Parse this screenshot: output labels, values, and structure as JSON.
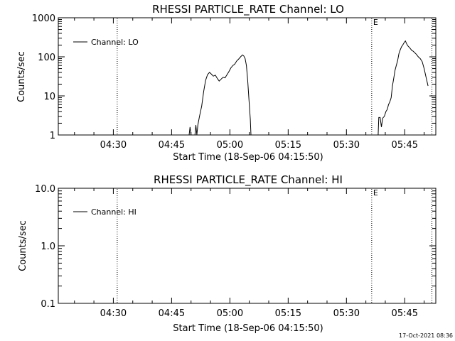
{
  "footer": {
    "timestamp": "17-Oct-2021 08:36"
  },
  "chart_data": [
    {
      "type": "line",
      "title": "RHESSI PARTICLE_RATE Channel: LO",
      "xlabel": "Start Time (18-Sep-06 04:15:50)",
      "ylabel": "Counts/sec",
      "yscale": "log",
      "xlim": [
        "04:15:50",
        "05:53:00"
      ],
      "ylim": [
        1,
        1000
      ],
      "xticks": [
        "04:30",
        "04:45",
        "05:00",
        "05:15",
        "05:30",
        "05:45"
      ],
      "yticks": [
        "1",
        "10",
        "100",
        "1000"
      ],
      "legend": {
        "label": "Channel: LO",
        "position": "top-left"
      },
      "markers": [
        {
          "time": "04:31:00",
          "label": ""
        },
        {
          "time": "05:36:30",
          "label": "E"
        },
        {
          "time": "05:52:00",
          "label": ""
        }
      ],
      "series": [
        {
          "name": "Channel: LO",
          "segments": [
            [
              [
                "04:49:30",
                1.0
              ],
              [
                "04:49:45",
                1.6
              ],
              [
                "04:50:00",
                1.0
              ],
              [
                "04:51:00",
                1.0
              ],
              [
                "04:51:15",
                1.8
              ],
              [
                "04:51:30",
                1.0
              ],
              [
                "04:51:45",
                1.8
              ],
              [
                "04:52:10",
                3.0
              ],
              [
                "04:52:45",
                5.5
              ],
              [
                "04:53:15",
                13.0
              ],
              [
                "04:53:45",
                25.0
              ],
              [
                "04:54:15",
                35.0
              ],
              [
                "04:54:45",
                40.0
              ],
              [
                "04:55:15",
                36.0
              ],
              [
                "04:55:45",
                32.0
              ],
              [
                "04:56:15",
                34.0
              ],
              [
                "04:56:45",
                28.0
              ],
              [
                "04:57:15",
                24.0
              ],
              [
                "04:57:45",
                27.0
              ],
              [
                "04:58:15",
                30.0
              ],
              [
                "04:58:45",
                29.0
              ],
              [
                "04:59:15",
                35.0
              ],
              [
                "04:59:45",
                42.0
              ],
              [
                "05:00:15",
                52.0
              ],
              [
                "05:00:45",
                60.0
              ],
              [
                "05:01:15",
                65.0
              ],
              [
                "05:01:45",
                78.0
              ],
              [
                "05:02:15",
                88.0
              ],
              [
                "05:02:45",
                100.0
              ],
              [
                "05:03:15",
                112.0
              ],
              [
                "05:03:35",
                105.0
              ],
              [
                "05:03:55",
                90.0
              ],
              [
                "05:04:15",
                60.0
              ],
              [
                "05:04:35",
                25.0
              ],
              [
                "05:04:55",
                8.0
              ],
              [
                "05:05:15",
                2.5
              ],
              [
                "05:05:25",
                1.0
              ]
            ],
            [
              [
                "05:38:10",
                1.0
              ],
              [
                "05:38:20",
                2.8
              ],
              [
                "05:38:40",
                2.8
              ],
              [
                "05:39:00",
                1.6
              ],
              [
                "05:39:20",
                2.7
              ],
              [
                "05:39:45",
                3.0
              ],
              [
                "05:40:10",
                4.0
              ],
              [
                "05:40:30",
                4.5
              ],
              [
                "05:40:50",
                6.0
              ],
              [
                "05:41:10",
                7.0
              ],
              [
                "05:41:30",
                9.0
              ],
              [
                "05:41:50",
                18.0
              ],
              [
                "05:42:10",
                28.0
              ],
              [
                "05:42:30",
                45.0
              ],
              [
                "05:42:50",
                60.0
              ],
              [
                "05:43:10",
                80.0
              ],
              [
                "05:43:30",
                120.0
              ],
              [
                "05:43:50",
                150.0
              ],
              [
                "05:44:10",
                180.0
              ],
              [
                "05:44:30",
                200.0
              ],
              [
                "05:44:50",
                230.0
              ],
              [
                "05:45:10",
                255.0
              ],
              [
                "05:45:30",
                215.0
              ],
              [
                "05:45:50",
                190.0
              ],
              [
                "05:46:10",
                175.0
              ],
              [
                "05:46:30",
                160.0
              ],
              [
                "05:46:50",
                145.0
              ],
              [
                "05:47:10",
                140.0
              ],
              [
                "05:47:30",
                130.0
              ],
              [
                "05:47:50",
                120.0
              ],
              [
                "05:48:10",
                110.0
              ],
              [
                "05:48:30",
                100.0
              ],
              [
                "05:49:00",
                90.0
              ],
              [
                "05:49:30",
                75.0
              ],
              [
                "05:50:00",
                50.0
              ],
              [
                "05:50:30",
                30.0
              ],
              [
                "05:51:00",
                18.0
              ]
            ]
          ]
        }
      ]
    },
    {
      "type": "line",
      "title": "RHESSI PARTICLE_RATE Channel: HI",
      "xlabel": "Start Time (18-Sep-06 04:15:50)",
      "ylabel": "Counts/sec",
      "yscale": "log",
      "xlim": [
        "04:15:50",
        "05:53:00"
      ],
      "ylim": [
        0.1,
        10
      ],
      "xticks": [
        "04:30",
        "04:45",
        "05:00",
        "05:15",
        "05:30",
        "05:45"
      ],
      "yticks": [
        "0.1",
        "1.0",
        "10.0"
      ],
      "legend": {
        "label": "Channel: HI",
        "position": "top-left"
      },
      "markers": [
        {
          "time": "04:31:00",
          "label": ""
        },
        {
          "time": "05:36:30",
          "label": "E"
        },
        {
          "time": "05:52:00",
          "label": ""
        }
      ],
      "series": [
        {
          "name": "Channel: HI",
          "segments": []
        }
      ]
    }
  ]
}
